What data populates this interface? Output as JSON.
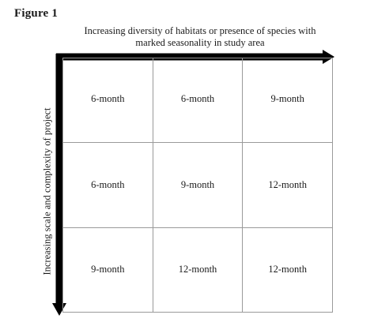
{
  "figure": {
    "label": "Figure 1"
  },
  "diagram": {
    "x_axis_title": "Increasing diversity of habitats or presence of species with marked seasonality in study area",
    "y_axis_title": "Increasing scale and complexity of project",
    "rows": [
      [
        "6-month",
        "6-month",
        "9-month"
      ],
      [
        "6-month",
        "9-month",
        "12-month"
      ],
      [
        "9-month",
        "12-month",
        "12-month"
      ]
    ]
  }
}
